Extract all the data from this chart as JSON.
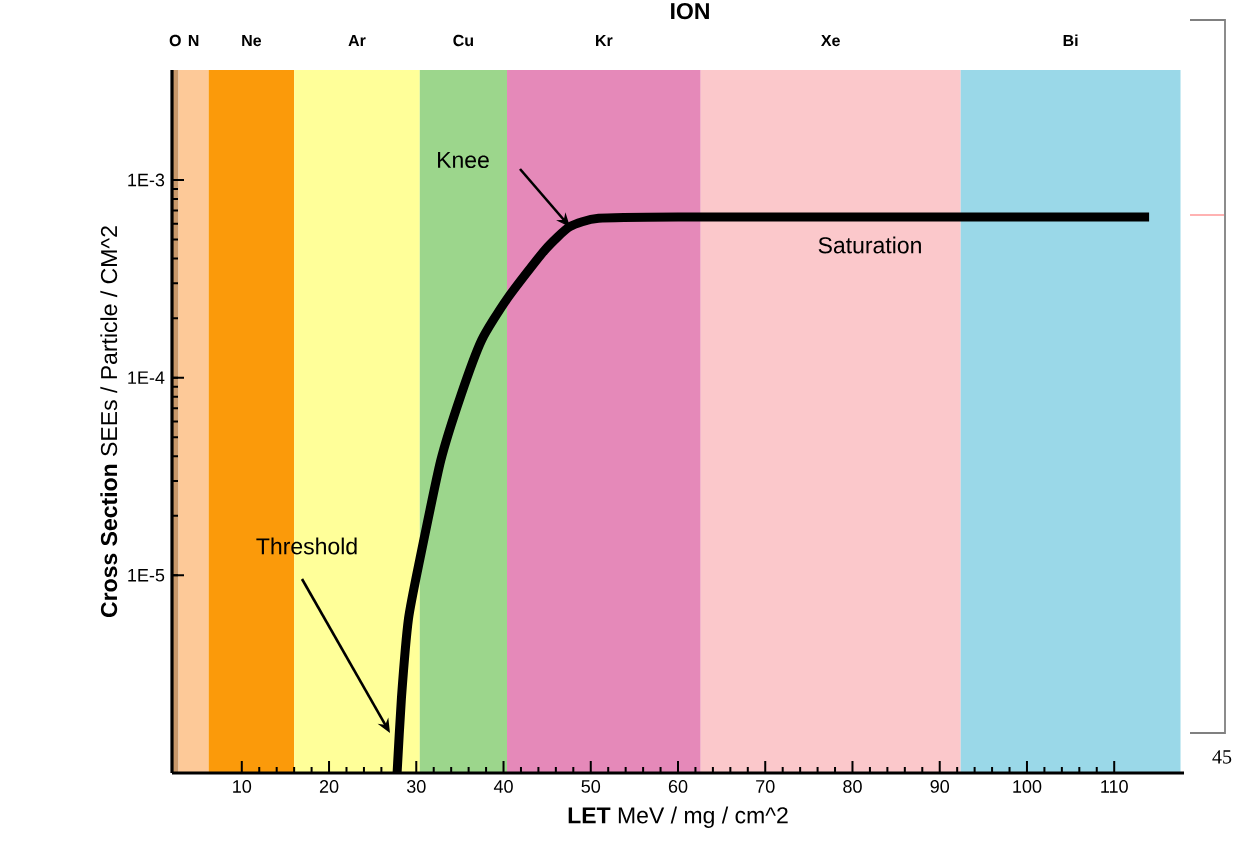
{
  "chart_data": {
    "type": "line",
    "title": "ION",
    "xlabel": "**LET** MeV / mg / cm^2",
    "ylabel": "**Cross Section** SEEs / Particle / CM^2",
    "x": [
      27.8,
      28.3,
      29.1,
      30.4,
      32.8,
      35.1,
      37.5,
      40.4,
      44.7,
      47.6,
      50.9,
      60,
      80,
      100,
      114
    ],
    "series": [
      {
        "color": "#000000",
        "values": [
          1e-06,
          2.4e-06,
          6e-06,
          1.2e-05,
          3.8e-05,
          8.1e-05,
          0.000155,
          0.00025,
          0.00044,
          0.00058,
          0.00064,
          0.00065,
          0.00065,
          0.00065,
          0.00065
        ]
      }
    ],
    "log": "y",
    "xlim": [
      2,
      118
    ],
    "ylim": [
      1e-06,
      0.0036
    ],
    "xticks": [
      10,
      20,
      30,
      40,
      50,
      60,
      70,
      80,
      90,
      100,
      110
    ],
    "yticks": [
      {
        "value": 1e-05,
        "label": "1E-5"
      },
      {
        "value": 0.0001,
        "label": "1E-4"
      },
      {
        "value": 0.001,
        "label": "1E-3"
      }
    ],
    "bands": [
      {
        "axis": "x",
        "from": 2,
        "to": 2.75,
        "label": "O",
        "color": "#c8986a"
      },
      {
        "axis": "x",
        "from": 2.75,
        "to": 6.2,
        "label": "N",
        "color": "#fdc998"
      },
      {
        "axis": "x",
        "from": 6.2,
        "to": 16,
        "label": "Ne",
        "color": "#fb9a0a"
      },
      {
        "axis": "x",
        "from": 16,
        "to": 30.4,
        "label": "Ar",
        "color": "#ffff99"
      },
      {
        "axis": "x",
        "from": 30.4,
        "to": 40.4,
        "label": "Cu",
        "color": "#9cd68c"
      },
      {
        "axis": "x",
        "from": 40.4,
        "to": 62.6,
        "label": "Kr",
        "color": "#e589b9"
      },
      {
        "axis": "x",
        "from": 62.6,
        "to": 92.4,
        "label": "Xe",
        "color": "#fbc8cb"
      },
      {
        "axis": "x",
        "from": 92.4,
        "to": 117.6,
        "label": "Bi",
        "color": "#9ad8e8"
      }
    ],
    "annotations": [
      "Threshold",
      "Knee",
      "Saturation",
      "45"
    ],
    "grid": false,
    "marker": "none",
    "line_style": "solid"
  }
}
